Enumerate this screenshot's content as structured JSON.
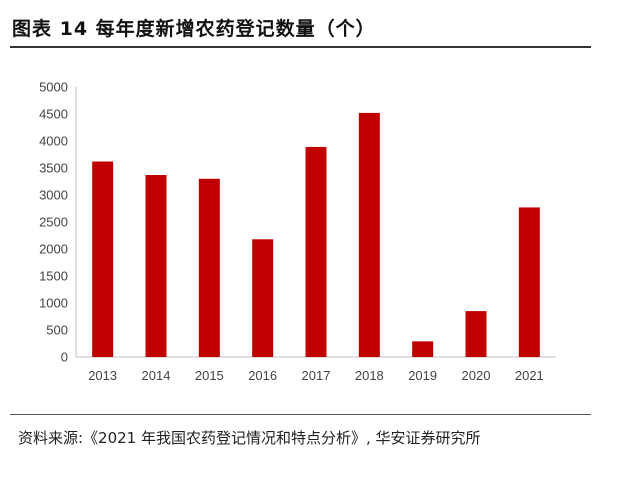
{
  "header": {
    "title": "图表 14 每年度新增农药登记数量（个）"
  },
  "source": {
    "text": "资料来源:《2021 年我国农药登记情况和特点分析》, 华安证券研究所"
  },
  "colors": {
    "bar": "#C00000",
    "axis": "#bfbfbf"
  },
  "chart_data": {
    "type": "bar",
    "title": "图表 14 每年度新增农药登记数量（个）",
    "xlabel": "",
    "ylabel": "",
    "categories": [
      "2013",
      "2014",
      "2015",
      "2016",
      "2017",
      "2018",
      "2019",
      "2020",
      "2021"
    ],
    "values": [
      3620,
      3370,
      3300,
      2180,
      3890,
      4520,
      290,
      850,
      2770
    ],
    "ylim": [
      0,
      5000
    ],
    "yticks": [
      "0",
      "500",
      "1000",
      "1500",
      "2000",
      "2500",
      "3000",
      "3500",
      "4000",
      "4500",
      "5000"
    ],
    "grid": false,
    "legend": "none"
  }
}
